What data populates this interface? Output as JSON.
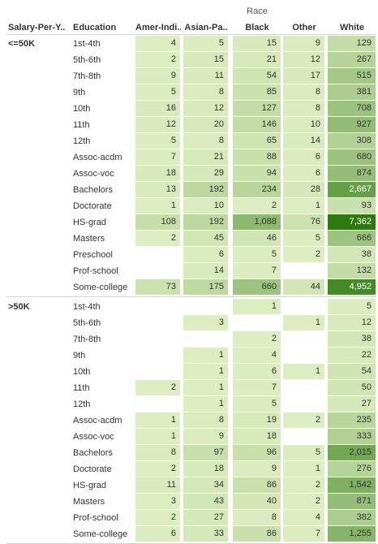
{
  "chart_data": {
    "type": "heatmap",
    "row_headers": [
      "Salary-Per-Y..",
      "Education"
    ],
    "column_group_title": "Race",
    "columns": [
      "Amer-Indi..",
      "Asian-Pa..",
      "Black",
      "Other",
      "White"
    ],
    "groups": [
      {
        "label": "<=50K",
        "rows": [
          {
            "education": "1st-4th",
            "values": [
              4,
              5,
              15,
              9,
              129
            ],
            "display": [
              "4",
              "5",
              "15",
              "9",
              "129"
            ]
          },
          {
            "education": "5th-6th",
            "values": [
              2,
              15,
              21,
              12,
              267
            ],
            "display": [
              "2",
              "15",
              "21",
              "12",
              "267"
            ]
          },
          {
            "education": "7th-8th",
            "values": [
              9,
              11,
              54,
              17,
              515
            ],
            "display": [
              "9",
              "11",
              "54",
              "17",
              "515"
            ]
          },
          {
            "education": "9th",
            "values": [
              5,
              8,
              85,
              8,
              381
            ],
            "display": [
              "5",
              "8",
              "85",
              "8",
              "381"
            ]
          },
          {
            "education": "10th",
            "values": [
              16,
              12,
              127,
              8,
              708
            ],
            "display": [
              "16",
              "12",
              "127",
              "8",
              "708"
            ]
          },
          {
            "education": "11th",
            "values": [
              12,
              20,
              146,
              10,
              927
            ],
            "display": [
              "12",
              "20",
              "146",
              "10",
              "927"
            ]
          },
          {
            "education": "12th",
            "values": [
              5,
              8,
              65,
              14,
              308
            ],
            "display": [
              "5",
              "8",
              "65",
              "14",
              "308"
            ]
          },
          {
            "education": "Assoc-acdm",
            "values": [
              7,
              21,
              88,
              6,
              680
            ],
            "display": [
              "7",
              "21",
              "88",
              "6",
              "680"
            ]
          },
          {
            "education": "Assoc-voc",
            "values": [
              18,
              29,
              94,
              6,
              874
            ],
            "display": [
              "18",
              "29",
              "94",
              "6",
              "874"
            ]
          },
          {
            "education": "Bachelors",
            "values": [
              13,
              192,
              234,
              28,
              2667
            ],
            "display": [
              "13",
              "192",
              "234",
              "28",
              "2,667"
            ]
          },
          {
            "education": "Doctorate",
            "values": [
              1,
              10,
              2,
              1,
              93
            ],
            "display": [
              "1",
              "10",
              "2",
              "1",
              "93"
            ]
          },
          {
            "education": "HS-grad",
            "values": [
              108,
              192,
              1088,
              76,
              7362
            ],
            "display": [
              "108",
              "192",
              "1,088",
              "76",
              "7,362"
            ]
          },
          {
            "education": "Masters",
            "values": [
              2,
              45,
              46,
              5,
              666
            ],
            "display": [
              "2",
              "45",
              "46",
              "5",
              "666"
            ]
          },
          {
            "education": "Preschool",
            "values": [
              null,
              6,
              5,
              2,
              38
            ],
            "display": [
              "",
              "6",
              "5",
              "2",
              "38"
            ]
          },
          {
            "education": "Prof-school",
            "values": [
              null,
              14,
              7,
              null,
              132
            ],
            "display": [
              "",
              "14",
              "7",
              "",
              "132"
            ]
          },
          {
            "education": "Some-college",
            "values": [
              73,
              175,
              660,
              44,
              4952
            ],
            "display": [
              "73",
              "175",
              "660",
              "44",
              "4,952"
            ]
          }
        ]
      },
      {
        "label": ">50K",
        "rows": [
          {
            "education": "1st-4th",
            "values": [
              null,
              null,
              1,
              null,
              5
            ],
            "display": [
              "",
              "",
              "1",
              "",
              "5"
            ]
          },
          {
            "education": "5th-6th",
            "values": [
              null,
              3,
              null,
              1,
              12
            ],
            "display": [
              "",
              "3",
              "",
              "1",
              "12"
            ]
          },
          {
            "education": "7th-8th",
            "values": [
              null,
              null,
              2,
              null,
              38
            ],
            "display": [
              "",
              "",
              "2",
              "",
              "38"
            ]
          },
          {
            "education": "9th",
            "values": [
              null,
              1,
              4,
              null,
              22
            ],
            "display": [
              "",
              "1",
              "4",
              "",
              "22"
            ]
          },
          {
            "education": "10th",
            "values": [
              null,
              1,
              6,
              1,
              54
            ],
            "display": [
              "",
              "1",
              "6",
              "1",
              "54"
            ]
          },
          {
            "education": "11th",
            "values": [
              2,
              1,
              7,
              null,
              50
            ],
            "display": [
              "2",
              "1",
              "7",
              "",
              "50"
            ]
          },
          {
            "education": "12th",
            "values": [
              null,
              1,
              5,
              null,
              27
            ],
            "display": [
              "",
              "1",
              "5",
              "",
              "27"
            ]
          },
          {
            "education": "Assoc-acdm",
            "values": [
              1,
              8,
              19,
              2,
              235
            ],
            "display": [
              "1",
              "8",
              "19",
              "2",
              "235"
            ]
          },
          {
            "education": "Assoc-voc",
            "values": [
              1,
              9,
              18,
              null,
              333
            ],
            "display": [
              "1",
              "9",
              "18",
              "",
              "333"
            ]
          },
          {
            "education": "Bachelors",
            "values": [
              8,
              97,
              96,
              5,
              2015
            ],
            "display": [
              "8",
              "97",
              "96",
              "5",
              "2,015"
            ]
          },
          {
            "education": "Doctorate",
            "values": [
              2,
              18,
              9,
              1,
              276
            ],
            "display": [
              "2",
              "18",
              "9",
              "1",
              "276"
            ]
          },
          {
            "education": "HS-grad",
            "values": [
              11,
              34,
              86,
              2,
              1542
            ],
            "display": [
              "11",
              "34",
              "86",
              "2",
              "1,542"
            ]
          },
          {
            "education": "Masters",
            "values": [
              3,
              43,
              40,
              2,
              871
            ],
            "display": [
              "3",
              "43",
              "40",
              "2",
              "871"
            ]
          },
          {
            "education": "Prof-school",
            "values": [
              2,
              27,
              8,
              4,
              382
            ],
            "display": [
              "2",
              "27",
              "8",
              "4",
              "382"
            ]
          },
          {
            "education": "Some-college",
            "values": [
              6,
              33,
              86,
              7,
              1255
            ],
            "display": [
              "6",
              "33",
              "86",
              "7",
              "1,255"
            ]
          }
        ]
      }
    ],
    "color_scale": {
      "low": "#dcedc1",
      "high": "#2f7a10",
      "max_value": 7362
    },
    "grid": false,
    "legend": "none"
  }
}
